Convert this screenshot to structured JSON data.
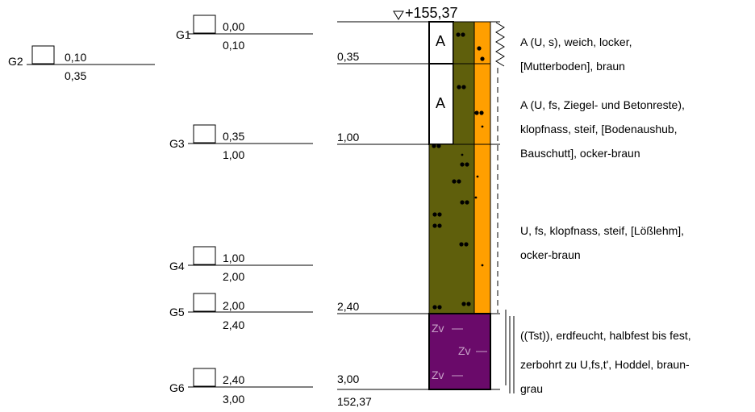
{
  "elevation": {
    "top": "+155,37",
    "bottom": "152,37"
  },
  "samples": [
    {
      "id": "G1",
      "from": "0,00",
      "to": "0,10"
    },
    {
      "id": "G2",
      "from": "0,10",
      "to": "0,35"
    },
    {
      "id": "G3",
      "from": "0,35",
      "to": "1,00"
    },
    {
      "id": "G4",
      "from": "1,00",
      "to": "2,00"
    },
    {
      "id": "G5",
      "from": "2,00",
      "to": "2,40"
    },
    {
      "id": "G6",
      "from": "2,40",
      "to": "3,00"
    }
  ],
  "layer_depths": [
    "0,35",
    "1,00",
    "2,40",
    "3,00"
  ],
  "layers": [
    {
      "symbol": "A",
      "lines": [
        "A (U, s), weich, locker,",
        "[Mutterboden], braun"
      ]
    },
    {
      "symbol": "A",
      "lines": [
        "A (U, fs, Ziegel- und Betonreste),",
        "klopfnass, steif, [Bodenaushub,",
        "Bauschutt], ocker-braun"
      ]
    },
    {
      "symbol": "",
      "lines": [
        "U, fs, klopfnass, steif, [Lößlehm],",
        "ocker-braun"
      ]
    },
    {
      "symbol": "Zv",
      "lines": [
        "((Tst)), erdfeucht, halbfest bis fest,",
        "zerbohrt zu U,fs,t', Hoddel, braun-",
        "grau"
      ]
    }
  ],
  "colors": {
    "fill_olive": "#5f5f0c",
    "fill_orange": "#ff9f00",
    "fill_purple": "#6a0a6a",
    "fill_white": "#ffffff"
  }
}
